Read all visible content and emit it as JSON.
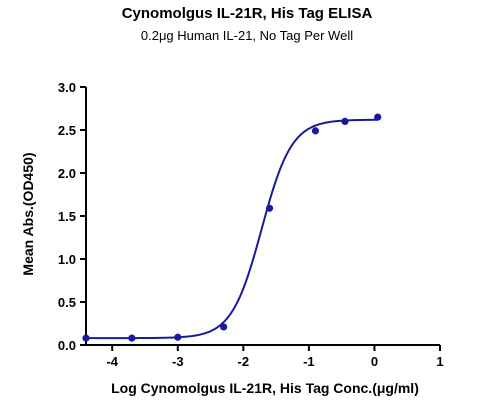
{
  "chart_data": {
    "type": "scatter",
    "title": "Cynomolgus IL-21R, His Tag ELISA",
    "subtitle": "0.2μg Human IL-21, No Tag Per Well",
    "xlabel": "Log Cynomolgus IL-21R, His Tag Conc.(μg/ml)",
    "ylabel": "Mean Abs.(OD450)",
    "xlim": [
      -4.4,
      1
    ],
    "ylim": [
      0,
      3.0
    ],
    "xticks": [
      -4,
      -3,
      -2,
      -1,
      0,
      1
    ],
    "yticks": [
      0.0,
      0.5,
      1.0,
      1.5,
      2.0,
      2.5,
      3.0
    ],
    "xtick_labels": [
      "-4",
      "-3",
      "-2",
      "-1",
      "0",
      "1"
    ],
    "ytick_labels": [
      "0.0",
      "0.5",
      "1.0",
      "1.5",
      "2.0",
      "2.5",
      "3.0"
    ],
    "grid": false,
    "series": [
      {
        "color": "#1a1aa0",
        "points": [
          {
            "x": -4.4,
            "y": 0.08
          },
          {
            "x": -3.7,
            "y": 0.08
          },
          {
            "x": -3.0,
            "y": 0.09
          },
          {
            "x": -2.3,
            "y": 0.21
          },
          {
            "x": -1.6,
            "y": 1.59
          },
          {
            "x": -0.9,
            "y": 2.49
          },
          {
            "x": -0.45,
            "y": 2.6
          },
          {
            "x": 0.05,
            "y": 2.65
          }
        ],
        "fit": {
          "model": "4PL",
          "bottom": 0.08,
          "top": 2.62,
          "logEC50": -1.72,
          "hill": 1.9
        }
      }
    ]
  }
}
